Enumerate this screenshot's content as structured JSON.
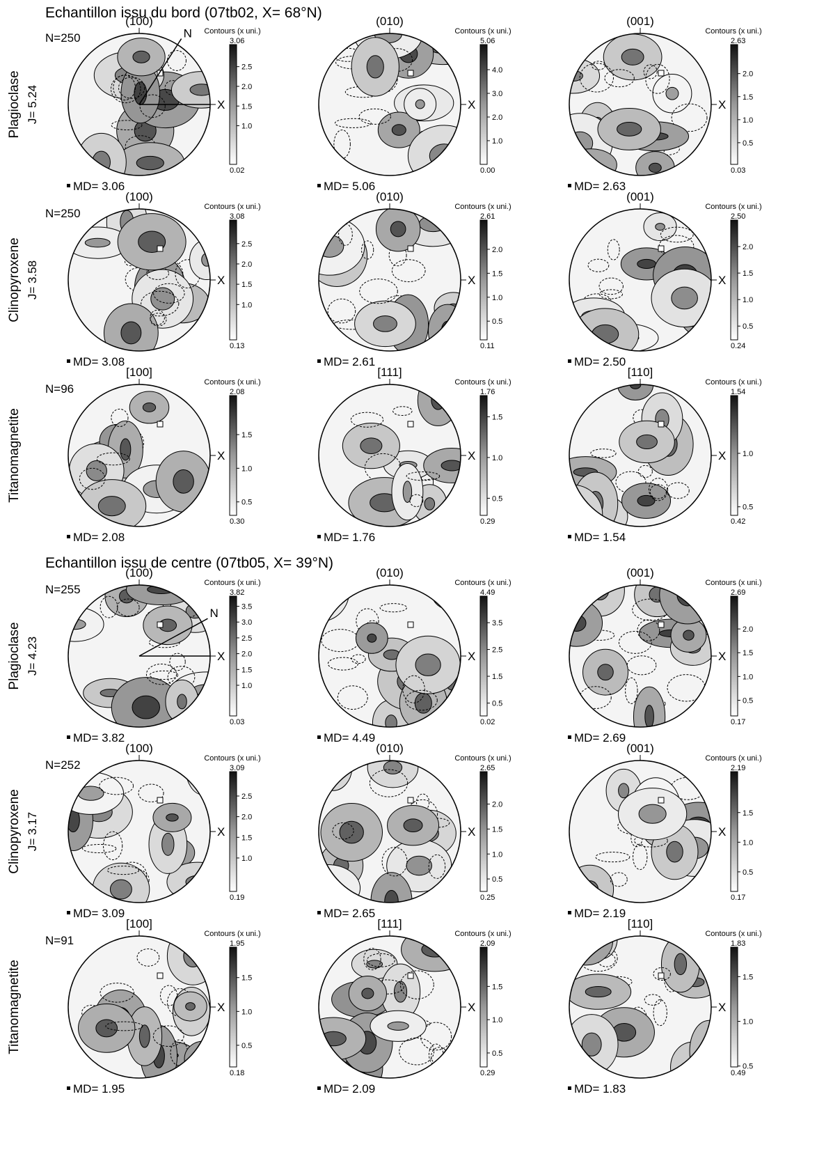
{
  "contour_title": "Contours (x uni.)",
  "x_axis_label": "X",
  "sections": [
    {
      "title": "Echantillon issu du bord (07tb02, X= 68°N)",
      "rows": [
        {
          "mineral": "Plagioclase",
          "n": "N=250",
          "j": "J= 5.24",
          "panels": [
            {
              "label": "(100)",
              "north_label": "N",
              "max": "3.06",
              "ticks": [
                "2.5",
                "2.0",
                "1.5",
                "1.0"
              ],
              "min": "0.02",
              "md": "MD= 3.06"
            },
            {
              "label": "(010)",
              "max": "5.06",
              "ticks": [
                "4.0",
                "3.0",
                "2.0",
                "1.0"
              ],
              "min": "0.00",
              "md": "MD= 5.06"
            },
            {
              "label": "(001)",
              "max": "2.63",
              "ticks": [
                "2.0",
                "1.5",
                "1.0",
                "0.5"
              ],
              "min": "0.03",
              "md": "MD= 2.63"
            }
          ]
        },
        {
          "mineral": "Clinopyroxene",
          "n": "N=250",
          "j": "J= 3.58",
          "panels": [
            {
              "label": "(100)",
              "max": "3.08",
              "ticks": [
                "2.5",
                "2.0",
                "1.5",
                "1.0"
              ],
              "min": "0.13",
              "md": "MD= 3.08"
            },
            {
              "label": "(010)",
              "max": "2.61",
              "ticks": [
                "2.0",
                "1.5",
                "1.0",
                "0.5"
              ],
              "min": "0.11",
              "md": "MD= 2.61"
            },
            {
              "label": "(001)",
              "max": "2.50",
              "ticks": [
                "2.0",
                "1.5",
                "1.0",
                "0.5"
              ],
              "min": "0.24",
              "md": "MD= 2.50"
            }
          ]
        },
        {
          "mineral": "Titanomagnetite",
          "n": "N=96",
          "panels": [
            {
              "label": "[100]",
              "max": "2.08",
              "ticks": [
                "1.5",
                "1.0",
                "0.5"
              ],
              "min": "0.30",
              "md": "MD= 2.08"
            },
            {
              "label": "[111]",
              "max": "1.76",
              "ticks": [
                "1.5",
                "1.0",
                "0.5"
              ],
              "min": "0.29",
              "md": "MD= 1.76"
            },
            {
              "label": "[110]",
              "max": "1.54",
              "ticks": [
                "1.0",
                "0.5"
              ],
              "min": "0.42",
              "md": "MD= 1.54"
            }
          ]
        }
      ]
    },
    {
      "title": "Echantillon issu de centre (07tb05, X= 39°N)",
      "rows": [
        {
          "mineral": "Plagioclase",
          "n": "N=255",
          "j": "J= 4.23",
          "panels": [
            {
              "label": "(100)",
              "north_label": "N",
              "max": "3.82",
              "ticks": [
                "3.5",
                "3.0",
                "2.5",
                "2.0",
                "1.5",
                "1.0"
              ],
              "min": "0.03",
              "md": "MD= 3.82"
            },
            {
              "label": "(010)",
              "max": "4.49",
              "ticks": [
                "3.5",
                "2.5",
                "1.5",
                "0.5"
              ],
              "min": "0.02",
              "md": "MD= 4.49"
            },
            {
              "label": "(001)",
              "max": "2.69",
              "ticks": [
                "2.0",
                "1.5",
                "1.0",
                "0.5"
              ],
              "min": "0.17",
              "md": "MD= 2.69"
            }
          ]
        },
        {
          "mineral": "Clinopyroxene",
          "n": "N=252",
          "j": "J= 3.17",
          "panels": [
            {
              "label": "(100)",
              "max": "3.09",
              "ticks": [
                "2.5",
                "2.0",
                "1.5",
                "1.0"
              ],
              "min": "0.19",
              "md": "MD= 3.09"
            },
            {
              "label": "(010)",
              "max": "2.65",
              "ticks": [
                "2.0",
                "1.5",
                "1.0",
                "0.5"
              ],
              "min": "0.25",
              "md": "MD= 2.65"
            },
            {
              "label": "(001)",
              "max": "2.19",
              "ticks": [
                "1.5",
                "1.0",
                "0.5"
              ],
              "min": "0.17",
              "md": "MD= 2.19"
            }
          ]
        },
        {
          "mineral": "Titanomagnetite",
          "n": "N=91",
          "panels": [
            {
              "label": "[100]",
              "max": "1.95",
              "ticks": [
                "1.5",
                "1.0",
                "0.5"
              ],
              "min": "0.18",
              "md": "MD= 1.95"
            },
            {
              "label": "[111]",
              "max": "2.09",
              "ticks": [
                "1.5",
                "1.0",
                "0.5"
              ],
              "min": "0.29",
              "md": "MD= 2.09"
            },
            {
              "label": "[110]",
              "max": "1.83",
              "ticks": [
                "1.5",
                "1.0",
                "0.5"
              ],
              "min": "0.49",
              "md": "MD= 1.83"
            }
          ]
        }
      ]
    }
  ]
}
